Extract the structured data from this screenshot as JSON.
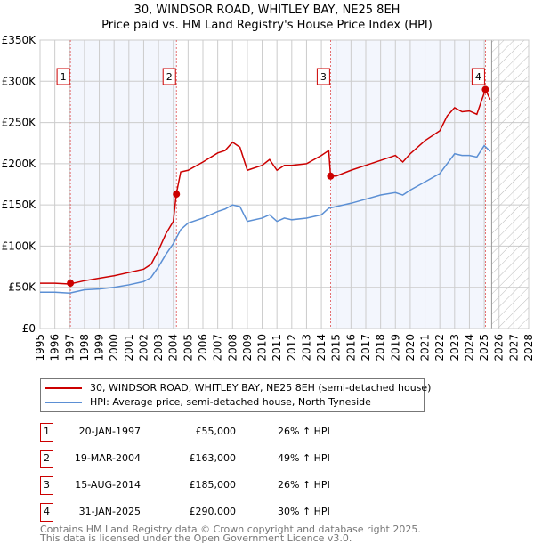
{
  "chart_data": {
    "type": "line",
    "title": "30, WINDSOR ROAD, WHITLEY BAY, NE25 8EH",
    "subtitle": "Price paid vs. HM Land Registry's House Price Index (HPI)",
    "xlim": [
      1995,
      2028
    ],
    "ylim": [
      0,
      350000
    ],
    "x_ticks": [
      "1995",
      "1996",
      "1997",
      "1998",
      "1999",
      "2000",
      "2001",
      "2002",
      "2003",
      "2004",
      "2005",
      "2006",
      "2007",
      "2008",
      "2009",
      "2010",
      "2011",
      "2012",
      "2013",
      "2014",
      "2015",
      "2016",
      "2017",
      "2018",
      "2019",
      "2020",
      "2021",
      "2022",
      "2023",
      "2024",
      "2025",
      "2026",
      "2027",
      "2028"
    ],
    "y_ticks": [
      {
        "v": 0,
        "label": "£0"
      },
      {
        "v": 50000,
        "label": "£50K"
      },
      {
        "v": 100000,
        "label": "£100K"
      },
      {
        "v": 150000,
        "label": "£150K"
      },
      {
        "v": 200000,
        "label": "£200K"
      },
      {
        "v": 250000,
        "label": "£250K"
      },
      {
        "v": 300000,
        "label": "£300K"
      },
      {
        "v": 350000,
        "label": "£350K"
      }
    ],
    "grid": true,
    "forecast_hatch_from": 2025.5,
    "series": [
      {
        "name": "30, WINDSOR ROAD, WHITLEY BAY, NE25 8EH (semi-detached house)",
        "color": "#cc0000",
        "x": [
          1995,
          1996,
          1997,
          1998,
          1999,
          2000,
          2001,
          2002,
          2002.5,
          2003,
          2003.5,
          2004,
          2004.2,
          2004.5,
          2005,
          2006,
          2007,
          2007.5,
          2008,
          2008.5,
          2009,
          2010,
          2010.5,
          2011,
          2011.5,
          2012,
          2013,
          2014,
          2014.5,
          2014.62,
          2015,
          2016,
          2017,
          2018,
          2019,
          2019.5,
          2020,
          2021,
          2022,
          2022.5,
          2023,
          2023.5,
          2024,
          2024.5,
          2025.08,
          2025.4
        ],
        "y": [
          55000,
          55000,
          54000,
          58000,
          61000,
          64000,
          68000,
          72000,
          78000,
          95000,
          115000,
          130000,
          163000,
          190000,
          192000,
          202000,
          213000,
          216000,
          226000,
          220000,
          192000,
          198000,
          205000,
          192000,
          198000,
          198000,
          200000,
          210000,
          216000,
          185000,
          185000,
          192000,
          198000,
          204000,
          210000,
          202000,
          212000,
          228000,
          240000,
          258000,
          268000,
          263000,
          264000,
          260000,
          290000,
          278000
        ]
      },
      {
        "name": "HPI: Average price, semi-detached house, North Tyneside",
        "color": "#5b8fd4",
        "x": [
          1995,
          1996,
          1997,
          1998,
          1999,
          2000,
          2001,
          2002,
          2002.5,
          2003,
          2003.5,
          2004,
          2004.5,
          2005,
          2006,
          2007,
          2007.5,
          2008,
          2008.5,
          2009,
          2010,
          2010.5,
          2011,
          2011.5,
          2012,
          2013,
          2014,
          2014.5,
          2015,
          2016,
          2017,
          2018,
          2019,
          2019.5,
          2020,
          2021,
          2022,
          2022.5,
          2023,
          2023.5,
          2024,
          2024.5,
          2025,
          2025.4
        ],
        "y": [
          44000,
          44000,
          43000,
          47000,
          48000,
          50000,
          53000,
          57000,
          62000,
          75000,
          90000,
          103000,
          120000,
          128000,
          134000,
          142000,
          145000,
          150000,
          148000,
          130000,
          134000,
          138000,
          130000,
          134000,
          132000,
          134000,
          138000,
          146000,
          148000,
          152000,
          157000,
          162000,
          165000,
          162000,
          168000,
          178000,
          188000,
          200000,
          212000,
          210000,
          210000,
          208000,
          222000,
          215000
        ]
      }
    ],
    "sales": [
      {
        "n": "1",
        "x": 1997.05,
        "price": 55000,
        "date": "20-JAN-1997",
        "price_label": "£55,000",
        "hpi": "26% ↑ HPI"
      },
      {
        "n": "2",
        "x": 2004.21,
        "price": 163000,
        "date": "19-MAR-2004",
        "price_label": "£163,000",
        "hpi": "49% ↑ HPI"
      },
      {
        "n": "3",
        "x": 2014.62,
        "price": 185000,
        "date": "15-AUG-2014",
        "price_label": "£185,000",
        "hpi": "26% ↑ HPI"
      },
      {
        "n": "4",
        "x": 2025.08,
        "price": 290000,
        "date": "31-JAN-2025",
        "price_label": "£290,000",
        "hpi": "30% ↑ HPI"
      }
    ]
  },
  "title": "30, WINDSOR ROAD, WHITLEY BAY, NE25 8EH",
  "subtitle": "Price paid vs. HM Land Registry's House Price Index (HPI)",
  "legend": [
    "30, WINDSOR ROAD, WHITLEY BAY, NE25 8EH (semi-detached house)",
    "HPI: Average price, semi-detached house, North Tyneside"
  ],
  "footer": [
    "Contains HM Land Registry data © Crown copyright and database right 2025.",
    "This data is licensed under the Open Government Licence v3.0."
  ]
}
